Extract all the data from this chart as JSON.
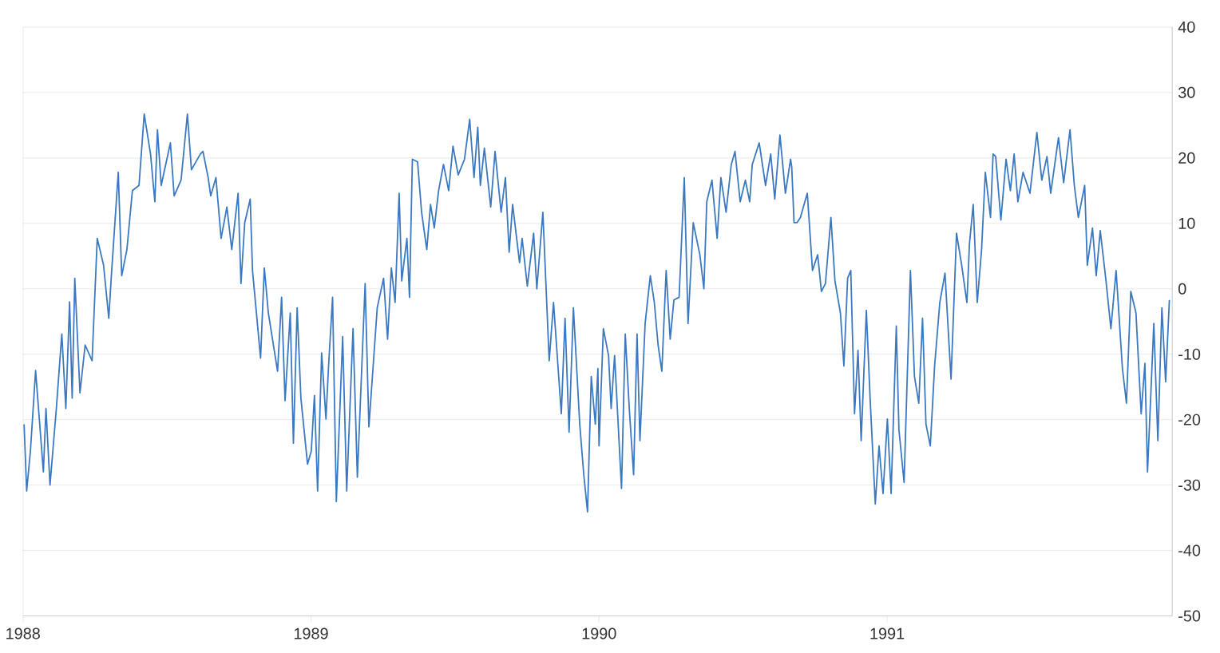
{
  "chart_data": {
    "type": "line",
    "color": "#3b78c2",
    "grid": "y",
    "xlim": [
      1988,
      1991.99
    ],
    "ylim": [
      -50,
      40
    ],
    "xticks": [
      1988,
      1989,
      1990,
      1991
    ],
    "yticks": [
      -50,
      -40,
      -30,
      -20,
      -10,
      0,
      10,
      20,
      30,
      40
    ],
    "x": [
      1988.004,
      1988.013,
      1988.026,
      1988.044,
      1988.071,
      1988.08,
      1988.094,
      1988.116,
      1988.135,
      1988.149,
      1988.162,
      1988.171,
      1988.18,
      1988.198,
      1988.216,
      1988.24,
      1988.258,
      1988.28,
      1988.298,
      1988.307,
      1988.331,
      1988.343,
      1988.361,
      1988.38,
      1988.403,
      1988.421,
      1988.443,
      1988.458,
      1988.467,
      1988.48,
      1988.512,
      1988.525,
      1988.549,
      1988.571,
      1988.585,
      1988.616,
      1988.625,
      1988.643,
      1988.652,
      1988.67,
      1988.688,
      1988.708,
      1988.725,
      1988.747,
      1988.757,
      1988.77,
      1988.789,
      1988.797,
      1988.825,
      1988.838,
      1988.852,
      1988.884,
      1988.898,
      1988.91,
      1988.928,
      1988.939,
      1988.952,
      1988.965,
      1988.988,
      1989.001,
      1989.012,
      1989.023,
      1989.037,
      1989.052,
      1989.061,
      1989.075,
      1989.088,
      1989.11,
      1989.124,
      1989.146,
      1989.161,
      1989.188,
      1989.201,
      1989.23,
      1989.252,
      1989.266,
      1989.279,
      1989.292,
      1989.306,
      1989.315,
      1989.333,
      1989.342,
      1989.352,
      1989.37,
      1989.384,
      1989.402,
      1989.415,
      1989.428,
      1989.443,
      1989.46,
      1989.478,
      1989.493,
      1989.511,
      1989.533,
      1989.551,
      1989.566,
      1989.579,
      1989.588,
      1989.602,
      1989.624,
      1989.639,
      1989.66,
      1989.675,
      1989.688,
      1989.7,
      1989.724,
      1989.733,
      1989.751,
      1989.773,
      1989.784,
      1989.805,
      1989.827,
      1989.842,
      1989.869,
      1989.882,
      1989.896,
      1989.911,
      1989.933,
      1989.947,
      1989.96,
      1989.973,
      1989.987,
      1989.996,
      1990.0,
      1990.015,
      1990.033,
      1990.042,
      1990.054,
      1990.078,
      1990.091,
      1990.105,
      1990.12,
      1990.132,
      1990.142,
      1990.16,
      1990.178,
      1990.192,
      1990.205,
      1990.218,
      1990.233,
      1990.247,
      1990.26,
      1990.278,
      1990.296,
      1990.309,
      1990.327,
      1990.35,
      1990.364,
      1990.374,
      1990.392,
      1990.41,
      1990.423,
      1990.441,
      1990.459,
      1990.472,
      1990.49,
      1990.508,
      1990.523,
      1990.532,
      1990.556,
      1990.578,
      1990.596,
      1990.61,
      1990.628,
      1990.647,
      1990.665,
      1990.669,
      1990.677,
      1990.687,
      1990.699,
      1990.723,
      1990.741,
      1990.759,
      1990.772,
      1990.786,
      1990.805,
      1990.819,
      1990.838,
      1990.85,
      1990.863,
      1990.874,
      1990.887,
      1990.899,
      1990.91,
      1990.928,
      1990.941,
      1990.959,
      1990.972,
      1990.986,
      1991.001,
      1991.014,
      1991.032,
      1991.041,
      1991.059,
      1991.081,
      1991.095,
      1991.11,
      1991.123,
      1991.135,
      1991.15,
      1991.165,
      1991.183,
      1991.201,
      1991.222,
      1991.241,
      1991.259,
      1991.277,
      1991.286,
      1991.299,
      1991.313,
      1991.328,
      1991.341,
      1991.359,
      1991.368,
      1991.377,
      1991.395,
      1991.413,
      1991.428,
      1991.441,
      1991.454,
      1991.472,
      1991.496,
      1991.52,
      1991.537,
      1991.555,
      1991.568,
      1991.595,
      1991.613,
      1991.635,
      1991.65,
      1991.664,
      1991.686,
      1991.695,
      1991.713,
      1991.726,
      1991.74,
      1991.759,
      1991.777,
      1991.795,
      1991.817,
      1991.831,
      1991.846,
      1991.864,
      1991.882,
      1991.895,
      1991.904,
      1991.926,
      1991.94,
      1991.954,
      1991.967,
      1991.98
    ],
    "values": [
      -20.7,
      -30.9,
      -24.8,
      -12.5,
      -28,
      -18.3,
      -30,
      -18.3,
      -6.9,
      -18.3,
      -2,
      -16.7,
      1.6,
      -15.9,
      -8.6,
      -11,
      7.7,
      3.6,
      -4.5,
      2,
      17.8,
      2,
      6,
      15,
      15.8,
      26.7,
      20.6,
      13.3,
      24.3,
      15.8,
      22.3,
      14.2,
      16.6,
      26.7,
      18.2,
      20.6,
      21,
      17,
      14.2,
      17,
      7.7,
      12.5,
      6,
      14.6,
      0.8,
      10.1,
      13.7,
      2.8,
      -10.6,
      3.2,
      -3.7,
      -12.6,
      -1.3,
      -17.1,
      -3.7,
      -23.6,
      -2.9,
      -16.7,
      -26.8,
      -24.8,
      -16.3,
      -30.9,
      -9.8,
      -19.9,
      -11.8,
      -1.3,
      -32.5,
      -7.3,
      -30.9,
      -6.1,
      -28.8,
      0.8,
      -21.1,
      -2.9,
      1.6,
      -7.7,
      3.2,
      -2.1,
      14.6,
      1.2,
      7.7,
      -1.3,
      19.8,
      19.4,
      11.7,
      6,
      12.9,
      9.3,
      15,
      19,
      15,
      21.8,
      17.4,
      19.8,
      25.9,
      17,
      24.7,
      15.8,
      21.5,
      12.5,
      21,
      11.7,
      17,
      5.6,
      12.9,
      4,
      7.7,
      0.4,
      8.5,
      0,
      11.7,
      -11,
      -2.1,
      -19.1,
      -4.5,
      -21.9,
      -2.9,
      -20.7,
      -28.4,
      -34.1,
      -13.4,
      -20.7,
      -12.2,
      -24,
      -6.1,
      -10.2,
      -18.3,
      -10.2,
      -30.5,
      -6.9,
      -18.3,
      -28.4,
      -6.9,
      -23.2,
      -5.3,
      2,
      -2.1,
      -8.6,
      -12.6,
      2.8,
      -7.7,
      -1.7,
      -1.3,
      17,
      -5.3,
      10.1,
      5.2,
      0,
      13.3,
      16.6,
      7.7,
      17,
      11.7,
      19,
      21,
      13.3,
      16.6,
      13.3,
      19,
      22.3,
      15.8,
      20.6,
      13.7,
      23.5,
      14.6,
      19.8,
      18.6,
      10.1,
      10.1,
      10.9,
      14.6,
      2.8,
      5.2,
      -0.4,
      0.8,
      10.9,
      1.2,
      -3.7,
      -11.8,
      1.6,
      2.8,
      -19.1,
      -9.4,
      -23.2,
      -3.3,
      -16.7,
      -32.9,
      -24,
      -31.3,
      -19.9,
      -31.3,
      -5.7,
      -21.5,
      -29.6,
      2.8,
      -13.4,
      -17.5,
      -4.5,
      -20.7,
      -24,
      -11.8,
      -2.1,
      2.4,
      -13.8,
      8.5,
      3.6,
      -2.1,
      6.9,
      12.9,
      -2.1,
      6,
      17.8,
      10.9,
      20.6,
      20.2,
      10.5,
      19.8,
      15,
      20.6,
      13.3,
      17.8,
      14.6,
      23.9,
      16.6,
      20.2,
      14.6,
      23.1,
      16.2,
      24.3,
      15.8,
      10.9,
      15.8,
      3.6,
      9.3,
      2,
      8.9,
      1.6,
      -6.1,
      2.8,
      -12.2,
      -17.5,
      -0.4,
      -3.7,
      -19.1,
      -11.4,
      -28,
      -5.3,
      -23.2,
      -2.9,
      -14.2,
      -1.7
    ]
  }
}
